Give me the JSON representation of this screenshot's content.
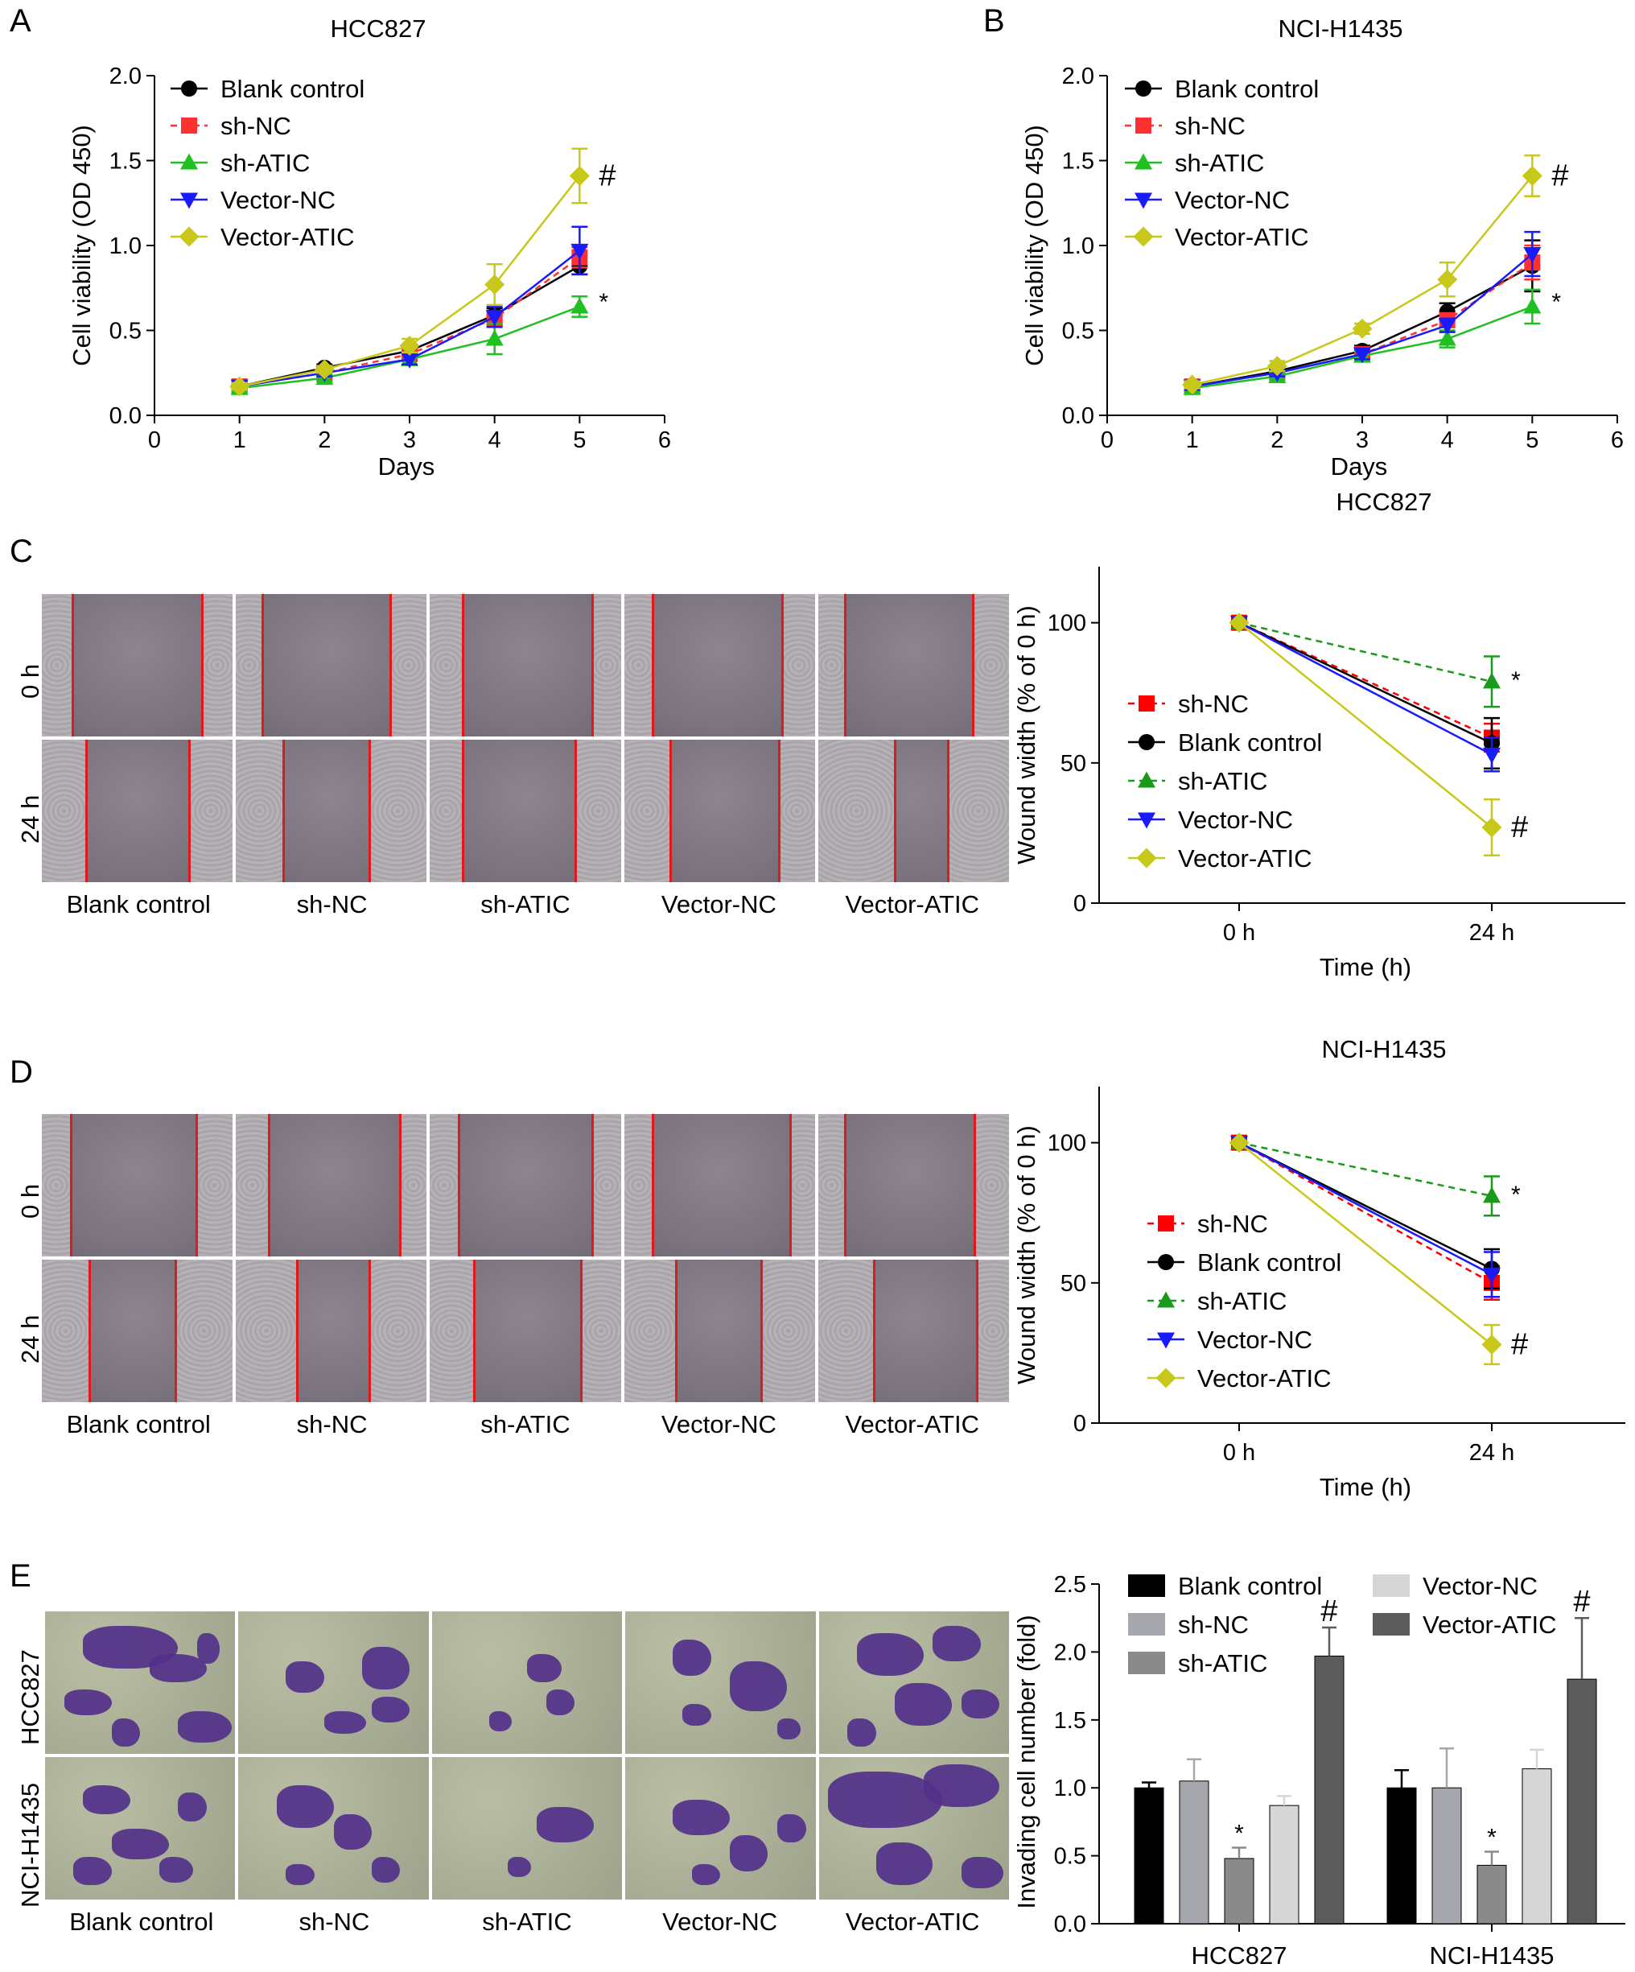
{
  "panel_letters": {
    "a": "A",
    "b": "B",
    "c": "C",
    "d": "D",
    "e": "E"
  },
  "colors": {
    "blank": "#000000",
    "shnc": "#ff3030",
    "shatic": "#1fc01f",
    "vecnc": "#1a1aff",
    "vecatic": "#c8c81a",
    "bar_blank": "#000000",
    "bar_shnc": "#a6a6ad",
    "bar_shatic": "#8a8a8a",
    "bar_vecnc": "#d6d6d6",
    "bar_vecatic": "#5c5c5c"
  },
  "micro": {
    "conditions": [
      "Blank control",
      "sh-NC",
      "sh-ATIC",
      "Vector-NC",
      "Vector-ATIC"
    ],
    "wound_rows": [
      "0 h",
      "24 h"
    ],
    "invasion_rows": [
      "HCC827",
      "NCI-H1435"
    ]
  },
  "chart_data": [
    {
      "type": "line",
      "panel": "A",
      "title": "HCC827",
      "xlabel": "Days",
      "ylabel": "Cell viability (OD 450)",
      "xlim": [
        0,
        6
      ],
      "ylim": [
        0,
        2.0
      ],
      "xticks": [
        "0",
        "1",
        "2",
        "3",
        "4",
        "5",
        "6"
      ],
      "yticks": [
        "0.0",
        "0.5",
        "1.0",
        "1.5",
        "2.0"
      ],
      "legend_position": "top-left",
      "x": [
        1,
        2,
        3,
        4,
        5
      ],
      "series": [
        {
          "name": "Blank control",
          "color": "#000000",
          "marker": "circle",
          "dash": false,
          "values": [
            0.17,
            0.28,
            0.38,
            0.59,
            0.88
          ],
          "err": [
            0.02,
            0.02,
            0.03,
            0.04,
            0.05
          ]
        },
        {
          "name": "sh-NC",
          "color": "#ff3030",
          "marker": "square",
          "dash": true,
          "values": [
            0.17,
            0.25,
            0.36,
            0.57,
            0.93
          ],
          "err": [
            0.02,
            0.02,
            0.03,
            0.04,
            0.06
          ]
        },
        {
          "name": "sh-ATIC",
          "color": "#1fc01f",
          "marker": "triangle-up",
          "dash": false,
          "values": [
            0.16,
            0.22,
            0.33,
            0.45,
            0.64
          ],
          "err": [
            0.02,
            0.02,
            0.03,
            0.09,
            0.06
          ]
        },
        {
          "name": "Vector-NC",
          "color": "#1a1aff",
          "marker": "triangle-down",
          "dash": false,
          "values": [
            0.17,
            0.25,
            0.33,
            0.58,
            0.97
          ],
          "err": [
            0.02,
            0.02,
            0.03,
            0.06,
            0.14
          ]
        },
        {
          "name": "Vector-ATIC",
          "color": "#c8c81a",
          "marker": "diamond",
          "dash": false,
          "values": [
            0.17,
            0.27,
            0.41,
            0.77,
            1.41
          ],
          "err": [
            0.02,
            0.02,
            0.04,
            0.12,
            0.16
          ]
        }
      ],
      "annotations": [
        {
          "text": "#",
          "series": "Vector-ATIC"
        },
        {
          "text": "*",
          "series": "sh-ATIC"
        }
      ]
    },
    {
      "type": "line",
      "panel": "B",
      "title": "NCI-H1435",
      "xlabel": "Days",
      "ylabel": "Cell viability (OD 450)",
      "xlim": [
        0,
        6
      ],
      "ylim": [
        0,
        2.0
      ],
      "xticks": [
        "0",
        "1",
        "2",
        "3",
        "4",
        "5",
        "6"
      ],
      "yticks": [
        "0.0",
        "0.5",
        "1.0",
        "1.5",
        "2.0"
      ],
      "legend_position": "top-left",
      "x": [
        1,
        2,
        3,
        4,
        5
      ],
      "series": [
        {
          "name": "Blank control",
          "color": "#000000",
          "marker": "circle",
          "dash": false,
          "values": [
            0.17,
            0.26,
            0.38,
            0.61,
            0.88
          ],
          "err": [
            0.02,
            0.02,
            0.03,
            0.05,
            0.15
          ]
        },
        {
          "name": "sh-NC",
          "color": "#ff3030",
          "marker": "square",
          "dash": true,
          "values": [
            0.17,
            0.25,
            0.36,
            0.56,
            0.9
          ],
          "err": [
            0.02,
            0.02,
            0.03,
            0.04,
            0.1
          ]
        },
        {
          "name": "sh-ATIC",
          "color": "#1fc01f",
          "marker": "triangle-up",
          "dash": false,
          "values": [
            0.16,
            0.23,
            0.35,
            0.45,
            0.64
          ],
          "err": [
            0.02,
            0.02,
            0.03,
            0.05,
            0.1
          ]
        },
        {
          "name": "Vector-NC",
          "color": "#1a1aff",
          "marker": "triangle-down",
          "dash": false,
          "values": [
            0.17,
            0.25,
            0.36,
            0.53,
            0.95
          ],
          "err": [
            0.02,
            0.02,
            0.03,
            0.04,
            0.13
          ]
        },
        {
          "name": "Vector-ATIC",
          "color": "#c8c81a",
          "marker": "diamond",
          "dash": false,
          "values": [
            0.18,
            0.29,
            0.51,
            0.8,
            1.41
          ],
          "err": [
            0.02,
            0.03,
            0.03,
            0.1,
            0.12
          ]
        }
      ],
      "annotations": [
        {
          "text": "#",
          "series": "Vector-ATIC"
        },
        {
          "text": "*",
          "series": "sh-ATIC"
        }
      ]
    },
    {
      "type": "line",
      "panel": "C",
      "title": "HCC827",
      "xlabel": "Time (h)",
      "ylabel": "Wound width (% of 0 h)",
      "ylim": [
        0,
        120
      ],
      "categories": [
        "0 h",
        "24 h"
      ],
      "yticks": [
        "0",
        "50",
        "100"
      ],
      "legend_position": "middle-left",
      "series": [
        {
          "name": "sh-NC",
          "color": "#ff0000",
          "marker": "square",
          "dash": true,
          "values": [
            100,
            59
          ],
          "err": [
            0,
            5
          ]
        },
        {
          "name": "Blank control",
          "color": "#000000",
          "marker": "circle",
          "dash": false,
          "values": [
            100,
            57
          ],
          "err": [
            0,
            9
          ]
        },
        {
          "name": "sh-ATIC",
          "color": "#1a9a1a",
          "marker": "triangle-up",
          "dash": true,
          "values": [
            100,
            79
          ],
          "err": [
            0,
            9
          ]
        },
        {
          "name": "Vector-NC",
          "color": "#1a1aff",
          "marker": "triangle-down",
          "dash": false,
          "values": [
            100,
            53
          ],
          "err": [
            0,
            6
          ]
        },
        {
          "name": "Vector-ATIC",
          "color": "#c8c81a",
          "marker": "diamond",
          "dash": false,
          "values": [
            100,
            27
          ],
          "err": [
            0,
            10
          ]
        }
      ],
      "annotations": [
        {
          "text": "*",
          "series": "sh-ATIC"
        },
        {
          "text": "#",
          "series": "Vector-ATIC"
        }
      ]
    },
    {
      "type": "line",
      "panel": "D",
      "title": "NCI-H1435",
      "xlabel": "Time (h)",
      "ylabel": "Wound width (% of 0 h)",
      "ylim": [
        0,
        120
      ],
      "categories": [
        "0 h",
        "24 h"
      ],
      "yticks": [
        "0",
        "50",
        "100"
      ],
      "legend_position": "middle-left",
      "series": [
        {
          "name": "sh-NC",
          "color": "#ff0000",
          "marker": "square",
          "dash": true,
          "values": [
            100,
            50
          ],
          "err": [
            0,
            6
          ]
        },
        {
          "name": "Blank control",
          "color": "#000000",
          "marker": "circle",
          "dash": false,
          "values": [
            100,
            55
          ],
          "err": [
            0,
            7
          ]
        },
        {
          "name": "sh-ATIC",
          "color": "#1a9a1a",
          "marker": "triangle-up",
          "dash": true,
          "values": [
            100,
            81
          ],
          "err": [
            0,
            7
          ]
        },
        {
          "name": "Vector-NC",
          "color": "#1a1aff",
          "marker": "triangle-down",
          "dash": false,
          "values": [
            100,
            53
          ],
          "err": [
            0,
            8
          ]
        },
        {
          "name": "Vector-ATIC",
          "color": "#c8c81a",
          "marker": "diamond",
          "dash": false,
          "values": [
            100,
            28
          ],
          "err": [
            0,
            7
          ]
        }
      ],
      "annotations": [
        {
          "text": "*",
          "series": "sh-ATIC"
        },
        {
          "text": "#",
          "series": "Vector-ATIC"
        }
      ]
    },
    {
      "type": "bar",
      "panel": "E",
      "ylabel": "Invading cell number (fold)",
      "ylim": [
        0,
        2.5
      ],
      "yticks": [
        "0.0",
        "0.5",
        "1.0",
        "1.5",
        "2.0",
        "2.5"
      ],
      "categories": [
        "HCC827",
        "NCI-H1435"
      ],
      "legend_position": "top",
      "series": [
        {
          "name": "Blank control",
          "color": "#000000",
          "values": [
            1.0,
            1.0
          ],
          "err": [
            0.04,
            0.13
          ]
        },
        {
          "name": "sh-NC",
          "color": "#a6a6ad",
          "values": [
            1.05,
            1.0
          ],
          "err": [
            0.16,
            0.29
          ]
        },
        {
          "name": "sh-ATIC",
          "color": "#8a8a8a",
          "values": [
            0.48,
            0.43
          ],
          "err": [
            0.08,
            0.1
          ]
        },
        {
          "name": "Vector-NC",
          "color": "#d6d6d6",
          "values": [
            0.87,
            1.14
          ],
          "err": [
            0.07,
            0.14
          ]
        },
        {
          "name": "Vector-ATIC",
          "color": "#5c5c5c",
          "values": [
            1.97,
            1.8
          ],
          "err": [
            0.21,
            0.45
          ]
        }
      ],
      "annotations": [
        {
          "text": "*",
          "series": "sh-ATIC"
        },
        {
          "text": "#",
          "series": "Vector-ATIC"
        }
      ]
    }
  ]
}
